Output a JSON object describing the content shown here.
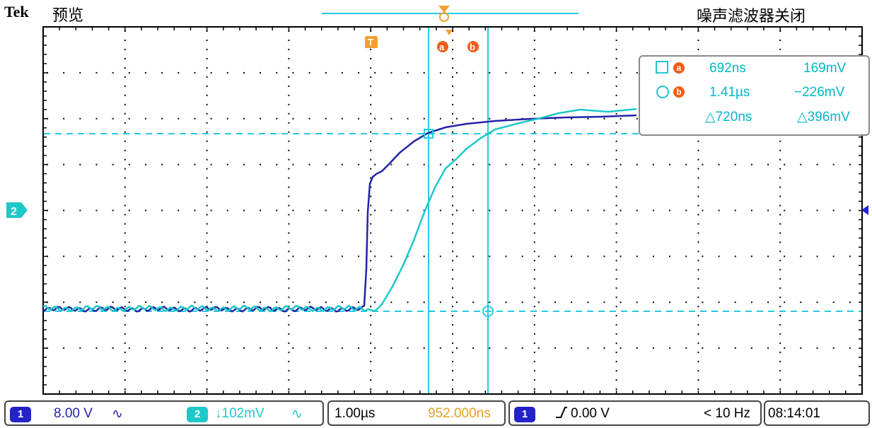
{
  "header": {
    "brand": "Tek",
    "mode": "预览",
    "noise_filter": "噪声滤波器关闭"
  },
  "markers": {
    "trigger_top": "T",
    "cursor_a": "a",
    "cursor_b": "b",
    "ch2_ground": "2"
  },
  "cursor_readout": {
    "a_time": "692ns",
    "a_volt": "169mV",
    "b_time": "1.41µs",
    "b_volt": "−226mV",
    "delta_time": "△720ns",
    "delta_volt": "△396mV"
  },
  "bottom": {
    "ch1_num": "1",
    "ch1_scale": "8.00 V",
    "ch1_coupling": "∿",
    "ch2_num": "2",
    "ch2_scale": "↓102mV",
    "ch2_coupling": "∿",
    "timebase": "1.00µs",
    "position": "952.000ns",
    "trig_ch": "1",
    "trig_level": "0.00 V",
    "freq": "< 10 Hz",
    "clock": "08:14:01"
  },
  "colors": {
    "ch1": "#2323a8",
    "ch2": "#1ec8c8",
    "cursor": "#26c9e0",
    "trigger": "#f0a030",
    "accent_orange": "#f25c19"
  }
}
